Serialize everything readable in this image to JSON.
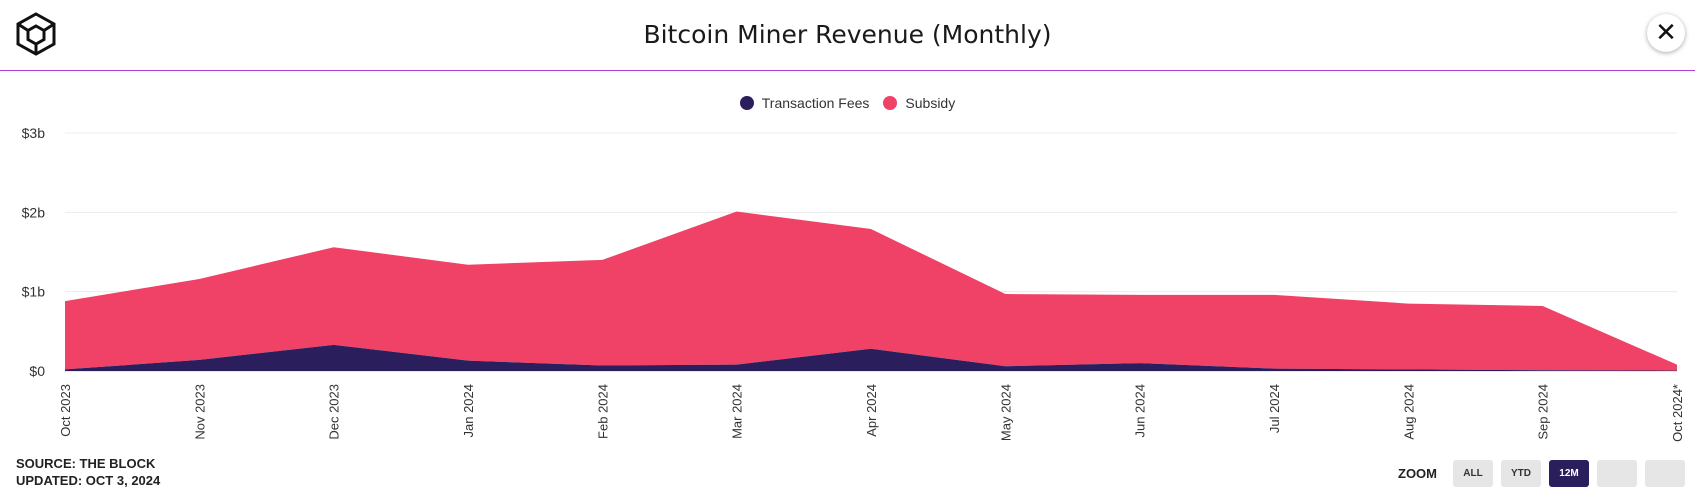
{
  "header": {
    "title": "Bitcoin Miner Revenue (Monthly)",
    "logo_icon": "cube-logo-icon",
    "close_icon": "close-icon",
    "close_label": "✕"
  },
  "footer": {
    "source": "SOURCE: THE BLOCK",
    "updated": "UPDATED: OCT 3, 2024"
  },
  "zoom": {
    "label": "ZOOM",
    "buttons": [
      {
        "label": "ALL",
        "active": false
      },
      {
        "label": "YTD",
        "active": false
      },
      {
        "label": "12M",
        "active": true
      },
      {
        "label": "",
        "active": false
      },
      {
        "label": "",
        "active": false
      }
    ]
  },
  "colors": {
    "fees": "#2a1f5c",
    "subsidy": "#ef4266",
    "accent_line": "#b13fd6",
    "active_zoom": "#2a1f5c"
  },
  "chart_data": {
    "type": "area",
    "stacked": true,
    "title": "Bitcoin Miner Revenue (Monthly)",
    "categories": [
      "Oct 2023",
      "Nov 2023",
      "Dec 2023",
      "Jan 2024",
      "Feb 2024",
      "Mar 2024",
      "Apr 2024",
      "May 2024",
      "Jun 2024",
      "Jul 2024",
      "Aug 2024",
      "Sep 2024",
      "Oct 2024*"
    ],
    "series": [
      {
        "name": "Transaction Fees",
        "values": [
          0.02,
          0.14,
          0.33,
          0.13,
          0.07,
          0.08,
          0.28,
          0.06,
          0.1,
          0.03,
          0.02,
          0.01,
          0.005
        ]
      },
      {
        "name": "Subsidy",
        "values": [
          0.86,
          1.02,
          1.23,
          1.21,
          1.33,
          1.93,
          1.51,
          0.91,
          0.86,
          0.93,
          0.83,
          0.81,
          0.075
        ]
      }
    ],
    "yticks": [
      "$0",
      "$1b",
      "$2b",
      "$3b"
    ],
    "ytick_values": [
      0,
      1,
      2,
      3
    ],
    "ylim": [
      0,
      3
    ],
    "unit": "$b",
    "legend": "top-center",
    "grid": true
  }
}
